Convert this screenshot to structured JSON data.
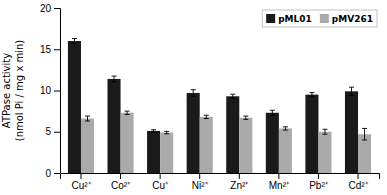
{
  "chart_data": {
    "type": "bar",
    "categories": [
      "Cu²⁺",
      "Co²⁺",
      "Cu⁺",
      "Ni²⁺",
      "Zn²⁺",
      "Mn²⁺",
      "Pb²⁺",
      "Cd²⁺"
    ],
    "series": [
      {
        "name": "pML01",
        "color": "#1a1a1a",
        "values": [
          16.0,
          11.4,
          5.1,
          9.7,
          9.3,
          7.3,
          9.5,
          9.9
        ],
        "errors": [
          0.3,
          0.35,
          0.15,
          0.4,
          0.25,
          0.3,
          0.25,
          0.5
        ]
      },
      {
        "name": "pMV261",
        "color": "#aaaaaa",
        "values": [
          6.6,
          7.3,
          4.9,
          6.8,
          6.7,
          5.4,
          5.0,
          4.7
        ],
        "errors": [
          0.3,
          0.2,
          0.15,
          0.2,
          0.2,
          0.2,
          0.3,
          0.7
        ]
      }
    ],
    "ylabel": "ATPase activity\n(nmol Pi / mg x min)",
    "ylim": [
      0,
      20
    ],
    "yticks": [
      0,
      5,
      10,
      15,
      20
    ],
    "legend": "upper right",
    "grid": false
  }
}
